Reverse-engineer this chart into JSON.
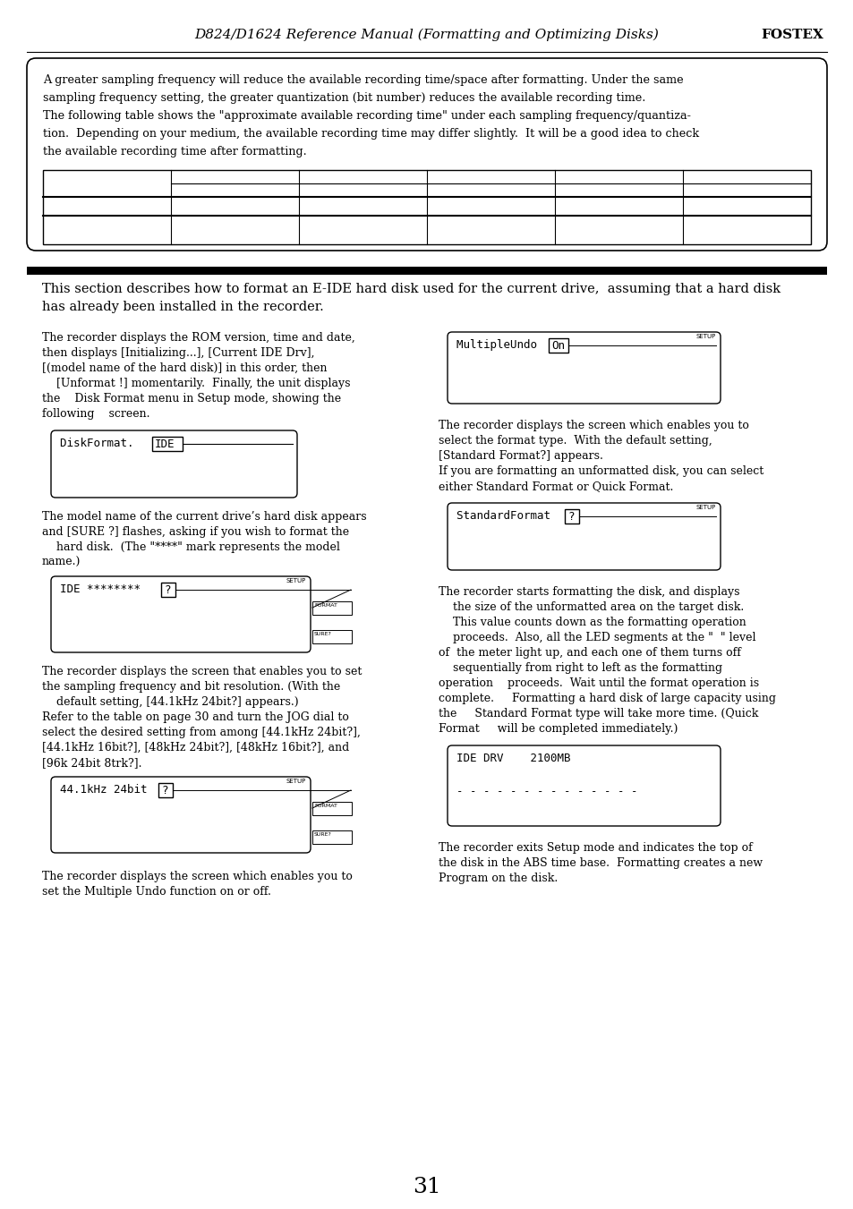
{
  "page_number": "31",
  "header_text": "D824/D1624 Reference Manual (Formatting and Optimizing Disks)",
  "header_brand": "FOSTEX",
  "note_lines": [
    "A greater sampling frequency will reduce the available recording time/space after formatting. Under the same",
    "sampling frequency setting, the greater quantization (bit number) reduces the available recording time.",
    "The following table shows the \"approximate available recording time\" under each sampling frequency/quantiza-",
    "tion.  Depending on your medium, the available recording time may differ slightly.  It will be a good idea to check",
    "the available recording time after formatting."
  ],
  "intro_line1": "This section describes how to format an E-IDE hard disk used for the current drive,  assuming that a hard disk",
  "intro_line2": "has already been installed in the recorder.",
  "L1_lines": [
    "The recorder displays the ROM version, time and date,",
    "then displays [Initializing...], [Current IDE Drv],",
    "[(model name of the hard disk)] in this order, then",
    "    [Unformat !] momentarily.  Finally, the unit displays",
    "the    Disk Format menu in Setup mode, showing the",
    "following    screen."
  ],
  "L1_screen": "DiskFormat.  IDE",
  "L1_screen_extra": "IDE",
  "L2_lines": [
    "The model name of the current drive’s hard disk appears",
    "and [SURE ?] flashes, asking if you wish to format the",
    "    hard disk.  (The \"****\" mark represents the model",
    "name.)"
  ],
  "L2_screen": "IDE ********   ?",
  "L3_lines": [
    "The recorder displays the screen that enables you to set",
    "the sampling frequency and bit resolution. (With the",
    "    default setting, [44.1kHz 24bit?] appears.)",
    "Refer to the table on page 30 and turn the JOG dial to",
    "select the desired setting from among [44.1kHz 24bit?],",
    "[44.1kHz 16bit?], [48kHz 24bit?], [48kHz 16bit?], and",
    "[96k 24bit 8trk?]."
  ],
  "L3_screen": "44.1kHz 24bit?",
  "L4_lines": [
    "The recorder displays the screen which enables you to",
    "set the Multiple Undo function on or off."
  ],
  "R1_screen": "MultipleUndo  On",
  "R2_lines": [
    "The recorder displays the screen which enables you to",
    "select the format type.  With the default setting,",
    "[Standard Format?] appears.",
    "If you are formatting an unformatted disk, you can select",
    "either Standard Format or Quick Format."
  ],
  "R2_screen": "StandardFormat ?",
  "R3_lines": [
    "The recorder starts formatting the disk, and displays",
    "    the size of the unformatted area on the target disk.",
    "    This value counts down as the formatting operation",
    "    proceeds.  Also, all the LED segments at the \"  \" level",
    "of  the meter light up, and each one of them turns off",
    "    sequentially from right to left as the formatting",
    "operation    proceeds.  Wait until the format operation is",
    "complete.     Formatting a hard disk of large capacity using",
    "the     Standard Format type will take more time. (Quick",
    "Format     will be completed immediately.)"
  ],
  "R3_screen_line1": "IDE DRV    2100MB",
  "R3_screen_line2": "- - - - - - - - - - - - - -",
  "R4_lines": [
    "The recorder exits Setup mode and indicates the top of",
    "the disk in the ABS time base.  Formatting creates a new",
    "Program on the disk."
  ],
  "bg": "#ffffff",
  "fg": "#000000"
}
